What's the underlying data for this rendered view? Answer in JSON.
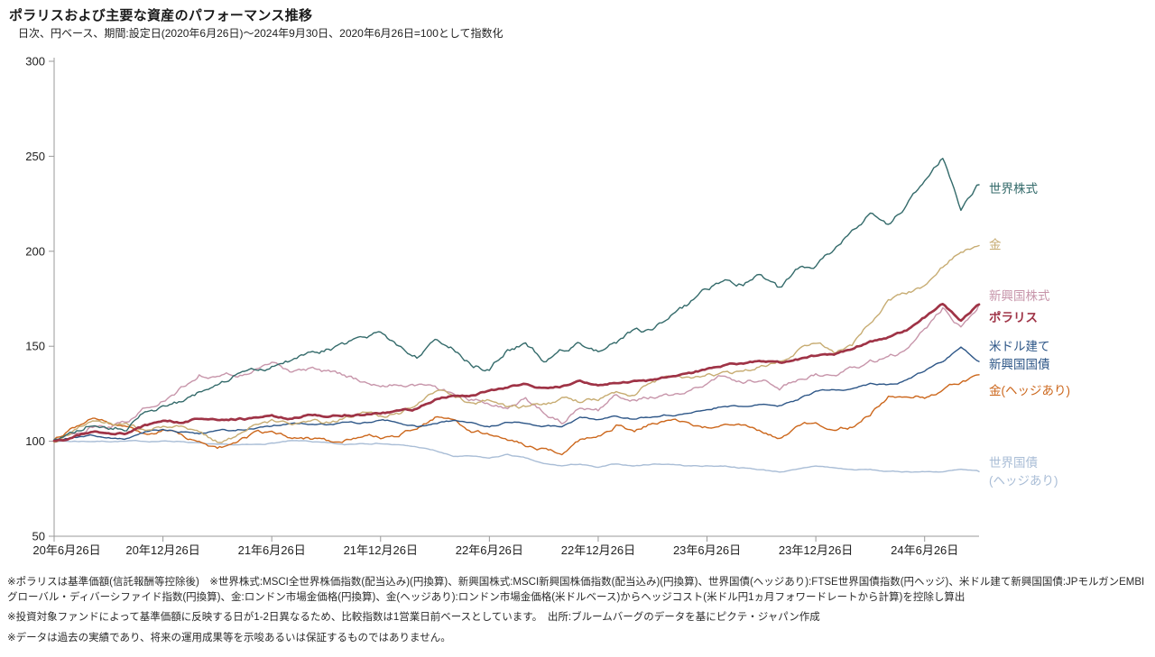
{
  "title": "ポラリスおよび主要な資産のパフォーマンス推移",
  "subtitle": "日次、円ベース、期間:設定日(2020年6月26日)〜2024年9月30日、2020年6月26日=100として指数化",
  "footnotes": [
    "※ポラリスは基準価額(信託報酬等控除後)　※世界株式:MSCI全世界株価指数(配当込み)(円換算)、新興国株式:MSCI新興国株価指数(配当込み)(円換算)、世界国債(ヘッジあり):FTSE世界国債指数(円ヘッジ)、米ドル建て新興国国債:JPモルガンEMBIグローバル・ディバーシファイド指数(円換算)、金:ロンドン市場金価格(円換算)、金(ヘッジあり):ロンドン市場金価格(米ドルベース)からヘッジコスト(米ドル円1ヵ月フォワードレートから計算)を控除し算出",
    "※投資対象ファンドによって基準価額に反映する日が1-2日異なるため、比較指数は1営業日前ベースとしています。　出所:ブルームバーグのデータを基にピクテ・ジャパン作成",
    "※データは過去の実績であり、将来の運用成果等を示唆あるいは保証するものではありません。"
  ],
  "chart_data": {
    "type": "line",
    "title": "ポラリスおよび主要な資産のパフォーマンス推移",
    "index_base": "2020年6月26日=100",
    "ylim": [
      50,
      300
    ],
    "y_ticks": [
      50,
      100,
      150,
      200,
      250,
      300
    ],
    "x_tick_labels": [
      "20年6月26日",
      "20年12月26日",
      "21年6月26日",
      "21年12月26日",
      "22年6月26日",
      "22年12月26日",
      "23年6月26日",
      "23年12月26日",
      "24年6月26日"
    ],
    "x_tick_indices": [
      0,
      6,
      12,
      18,
      24,
      30,
      36,
      42,
      48
    ],
    "n_points": 52,
    "grid": false,
    "legend_position": "right",
    "axis_color": "#9a9a9a",
    "series": [
      {
        "id": "world-equity",
        "name_lines": [
          "世界株式"
        ],
        "color": "#336a6a",
        "width": 1.4,
        "noise": 2.4,
        "values": [
          100,
          104,
          110,
          108,
          107,
          115,
          118,
          120,
          125,
          130,
          135,
          136,
          140,
          143,
          146,
          148,
          150,
          155,
          158,
          150,
          145,
          152,
          148,
          140,
          138,
          148,
          152,
          142,
          148,
          152,
          148,
          152,
          158,
          158,
          165,
          172,
          180,
          185,
          183,
          188,
          180,
          190,
          193,
          200,
          210,
          220,
          215,
          225,
          238,
          250,
          222,
          235
        ]
      },
      {
        "id": "gold",
        "name_lines": [
          "金"
        ],
        "color": "#c7ac72",
        "width": 1.4,
        "noise": 2.0,
        "values": [
          100,
          105,
          112,
          110,
          108,
          105,
          108,
          107,
          105,
          100,
          103,
          108,
          110,
          108,
          110,
          110,
          112,
          115,
          113,
          115,
          120,
          127,
          125,
          120,
          122,
          118,
          118,
          120,
          122,
          120,
          122,
          126,
          125,
          132,
          135,
          133,
          135,
          135,
          137,
          140,
          142,
          148,
          152,
          147,
          150,
          162,
          175,
          178,
          182,
          192,
          200,
          203
        ]
      },
      {
        "id": "em-equity",
        "name_lines": [
          "新興国株式"
        ],
        "color": "#c795aa",
        "width": 1.4,
        "noise": 2.2,
        "values": [
          100,
          104,
          108,
          108,
          110,
          117,
          122,
          128,
          135,
          133,
          135,
          137,
          140,
          135,
          138,
          136,
          134,
          132,
          130,
          130,
          128,
          128,
          125,
          122,
          120,
          118,
          122,
          115,
          110,
          118,
          116,
          124,
          122,
          124,
          124,
          126,
          130,
          135,
          132,
          133,
          128,
          133,
          136,
          133,
          138,
          142,
          145,
          148,
          158,
          170,
          160,
          172
        ]
      },
      {
        "id": "polaris",
        "name_lines": [
          "ポラリス"
        ],
        "color": "#9f3346",
        "width": 2.7,
        "noise": 1.0,
        "bold": true,
        "values": [
          100,
          102,
          105,
          104,
          104,
          108,
          110,
          110,
          112,
          111,
          112,
          112,
          113,
          112,
          114,
          113,
          114,
          114,
          115,
          116,
          117,
          122,
          124,
          124,
          127,
          128,
          130,
          128,
          129,
          131,
          130,
          131,
          132,
          132,
          134,
          135,
          138,
          140,
          141,
          142,
          141,
          143,
          145,
          146,
          149,
          153,
          155,
          158,
          165,
          172,
          163,
          172
        ]
      },
      {
        "id": "usd-em-bond",
        "name_lines": [
          "米ドル建て",
          "新興国国債"
        ],
        "color": "#2d5687",
        "width": 1.4,
        "noise": 0.9,
        "values": [
          100,
          102,
          103,
          102,
          102,
          105,
          106,
          105,
          104,
          105,
          106,
          107,
          108,
          109,
          109,
          109,
          110,
          110,
          111,
          110,
          108,
          110,
          111,
          110,
          108,
          110,
          110,
          108,
          108,
          112,
          111,
          113,
          112,
          113,
          114,
          114,
          117,
          119,
          119,
          120,
          119,
          122,
          126,
          127,
          128,
          130,
          130,
          132,
          137,
          142,
          150,
          142
        ]
      },
      {
        "id": "gold-hedged",
        "name_lines": [
          "金(ヘッジあり)"
        ],
        "color": "#cc671c",
        "width": 1.4,
        "noise": 1.8,
        "values": [
          100,
          106,
          112,
          110,
          107,
          103,
          106,
          104,
          99,
          95,
          99,
          104,
          105,
          102,
          102,
          100,
          101,
          104,
          102,
          103,
          107,
          113,
          110,
          105,
          104,
          100,
          98,
          96,
          94,
          100,
          102,
          108,
          104,
          110,
          112,
          110,
          108,
          108,
          107,
          105,
          101,
          107,
          110,
          107,
          108,
          115,
          124,
          125,
          124,
          127,
          131,
          135
        ]
      },
      {
        "id": "world-bond-hedged",
        "name_lines": [
          "世界国債",
          "(ヘッジあり)"
        ],
        "color": "#a9bdd6",
        "width": 1.4,
        "noise": 0.5,
        "values": [
          100,
          100,
          100,
          100,
          100,
          100,
          100,
          100,
          99,
          98,
          98,
          98,
          99,
          100,
          100,
          99,
          98,
          99,
          99,
          98,
          97,
          95,
          92,
          92,
          91,
          93,
          91,
          88,
          87,
          88,
          86,
          88,
          87,
          88,
          88,
          87,
          87,
          87,
          86,
          85,
          84,
          85,
          87,
          86,
          85,
          85,
          84,
          84,
          84,
          84,
          85,
          84
        ]
      }
    ]
  }
}
